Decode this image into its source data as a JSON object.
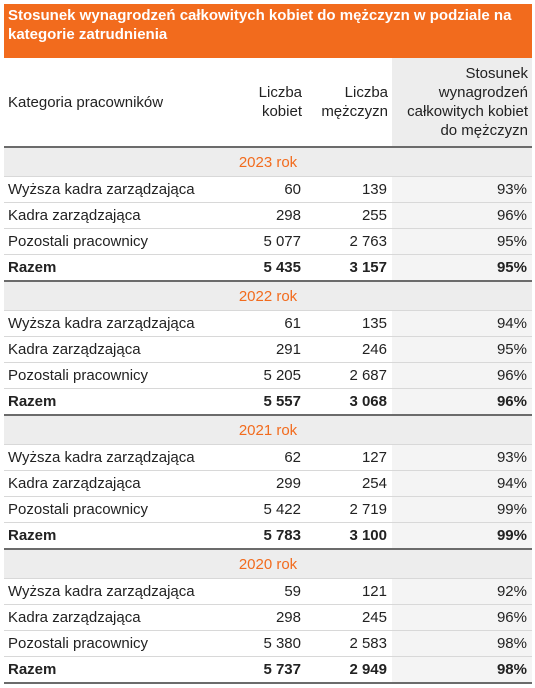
{
  "title": "Stosunek wynagrodzeń całkowitych kobiet do mężczyzn w podziale na kategorie zatrudnienia",
  "columns": [
    "Kategoria pracowników",
    "Liczba kobiet",
    "Liczba mężczyzn",
    "Stosunek wynagrodzeń całkowitych kobiet do mężczyzn"
  ],
  "accent_color": "#f26b1d",
  "sections": [
    {
      "year": "2023 rok",
      "rows": [
        {
          "category": "Wyższa kadra zarządzająca",
          "women": "60",
          "men": "139",
          "ratio": "93%"
        },
        {
          "category": "Kadra zarządzająca",
          "women": "298",
          "men": "255",
          "ratio": "96%"
        },
        {
          "category": "Pozostali pracownicy",
          "women": "5 077",
          "men": "2 763",
          "ratio": "95%"
        }
      ],
      "total": {
        "category": "Razem",
        "women": "5 435",
        "men": "3 157",
        "ratio": "95%"
      }
    },
    {
      "year": "2022 rok",
      "rows": [
        {
          "category": "Wyższa kadra zarządzająca",
          "women": "61",
          "men": "135",
          "ratio": "94%"
        },
        {
          "category": "Kadra zarządzająca",
          "women": "291",
          "men": "246",
          "ratio": "95%"
        },
        {
          "category": "Pozostali pracownicy",
          "women": "5 205",
          "men": "2 687",
          "ratio": "96%"
        }
      ],
      "total": {
        "category": "Razem",
        "women": "5 557",
        "men": "3 068",
        "ratio": "96%"
      }
    },
    {
      "year": "2021 rok",
      "rows": [
        {
          "category": "Wyższa kadra zarządzająca",
          "women": "62",
          "men": "127",
          "ratio": "93%"
        },
        {
          "category": "Kadra zarządzająca",
          "women": "299",
          "men": "254",
          "ratio": "94%"
        },
        {
          "category": "Pozostali pracownicy",
          "women": "5 422",
          "men": "2 719",
          "ratio": "99%"
        }
      ],
      "total": {
        "category": "Razem",
        "women": "5 783",
        "men": "3 100",
        "ratio": "99%"
      }
    },
    {
      "year": "2020 rok",
      "rows": [
        {
          "category": "Wyższa kadra zarządzająca",
          "women": "59",
          "men": "121",
          "ratio": "92%"
        },
        {
          "category": "Kadra zarządzająca",
          "women": "298",
          "men": "245",
          "ratio": "96%"
        },
        {
          "category": "Pozostali pracownicy",
          "women": "5 380",
          "men": "2 583",
          "ratio": "98%"
        }
      ],
      "total": {
        "category": "Razem",
        "women": "5 737",
        "men": "2 949",
        "ratio": "98%"
      }
    }
  ]
}
